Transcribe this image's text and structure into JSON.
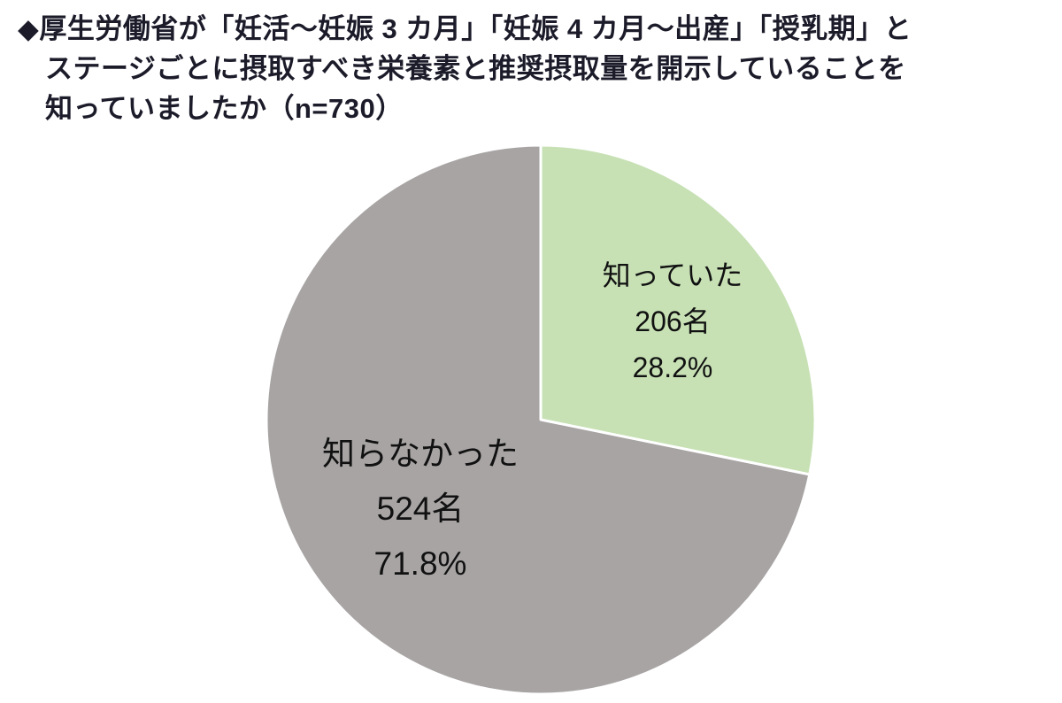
{
  "title": {
    "line1": "◆厚生労働省が「妊活～妊娠 3 カ月」「妊娠 4 カ月～出産」「授乳期」と",
    "line2": "ステージごとに摂取すべき栄養素と推奨摂取量を開示していることを",
    "line3": "知っていましたか（n=730）"
  },
  "chart_data": {
    "type": "pie",
    "title": "厚生労働省がステージごとに摂取すべき栄養素と推奨摂取量を開示していることを知っていましたか",
    "sample_size_label": "n=730",
    "start_angle_deg": 0,
    "direction": "clockwise",
    "legend_position": "inside",
    "colors": {
      "aware": "#c7e1b5",
      "unaware": "#a8a4a4",
      "divider": "#ffffff"
    },
    "slices": [
      {
        "id": "aware",
        "label": "知っていた",
        "count": "206名",
        "percent": "28.2%",
        "value": 28.2,
        "color": "#c7e1b5"
      },
      {
        "id": "unaware",
        "label": "知らなかった",
        "count": "524名",
        "percent": "71.8%",
        "value": 71.8,
        "color": "#a8a4a4"
      }
    ]
  }
}
